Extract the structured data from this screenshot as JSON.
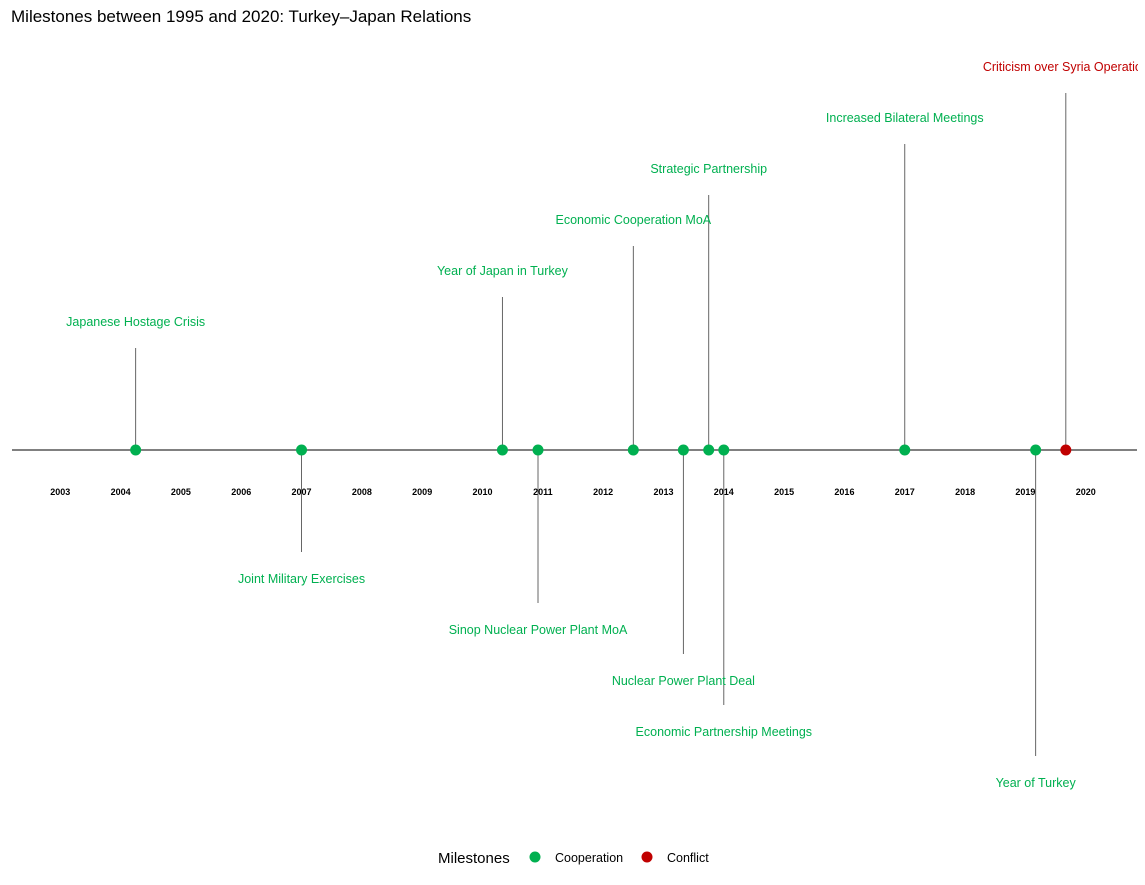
{
  "chart_data": {
    "type": "timeline",
    "title": "Milestones between 1995 and 2020: Turkey–Japan Relations",
    "xlim": [
      2002.2,
      2020.85
    ],
    "ticks": [
      "2003",
      "2004",
      "2005",
      "2006",
      "2007",
      "2008",
      "2009",
      "2010",
      "2011",
      "2012",
      "2013",
      "2014",
      "2015",
      "2016",
      "2017",
      "2018",
      "2019",
      "2020"
    ],
    "colors": {
      "Cooperation": "#00b050",
      "Conflict": "#c00000"
    },
    "legend": {
      "title": "Milestones",
      "position": "bottom",
      "items": [
        {
          "label": "Cooperation",
          "category": "Cooperation"
        },
        {
          "label": "Conflict",
          "category": "Conflict"
        }
      ]
    },
    "events": [
      {
        "date": 2004.25,
        "label": "Japanese Hostage Crisis",
        "category": "Cooperation",
        "level": 2
      },
      {
        "date": 2007.0,
        "label": "Joint Military Exercises",
        "category": "Cooperation",
        "level": -2
      },
      {
        "date": 2010.33,
        "label": "Year of Japan in Turkey",
        "category": "Cooperation",
        "level": 3
      },
      {
        "date": 2010.92,
        "label": "Sinop Nuclear Power Plant MoA",
        "category": "Cooperation",
        "level": -3
      },
      {
        "date": 2012.5,
        "label": "Economic Cooperation MoA",
        "category": "Cooperation",
        "level": 4
      },
      {
        "date": 2013.33,
        "label": "Nuclear Power Plant Deal",
        "category": "Cooperation",
        "level": -4
      },
      {
        "date": 2013.75,
        "label": "Strategic Partnership",
        "category": "Cooperation",
        "level": 5
      },
      {
        "date": 2014.0,
        "label": "Economic Partnership Meetings",
        "category": "Cooperation",
        "level": -5
      },
      {
        "date": 2017.0,
        "label": "Increased Bilateral Meetings",
        "category": "Cooperation",
        "level": 6
      },
      {
        "date": 2019.17,
        "label": "Year of Turkey",
        "category": "Cooperation",
        "level": -6
      },
      {
        "date": 2019.67,
        "label": "Criticism over Syria Operation",
        "category": "Conflict",
        "level": 7
      }
    ]
  }
}
